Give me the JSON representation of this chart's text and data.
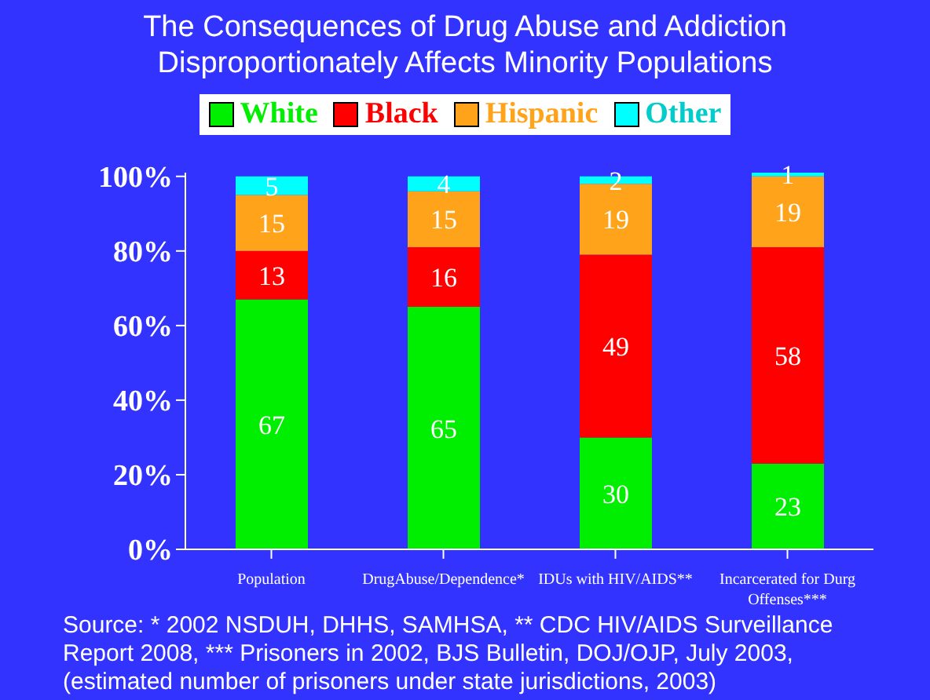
{
  "chart_data": {
    "type": "bar",
    "stacked": true,
    "title": "The Consequences of Drug Abuse and Addiction Disproportionately Affects Minority Populations",
    "categories": [
      "Population",
      "DrugAbuse/Dependence*",
      "IDUs with HIV/AIDS**",
      "Incarcerated for Durg Offenses***"
    ],
    "series": [
      {
        "name": "White",
        "color": "#00ee00",
        "values": [
          67,
          65,
          30,
          23
        ]
      },
      {
        "name": "Black",
        "color": "#ff0000",
        "values": [
          13,
          16,
          49,
          58
        ]
      },
      {
        "name": "Hispanic",
        "color": "#ffa31a",
        "values": [
          15,
          15,
          19,
          19
        ]
      },
      {
        "name": "Other",
        "color": "#00ffff",
        "values": [
          5,
          4,
          2,
          1
        ]
      }
    ],
    "ylim": [
      0,
      101
    ],
    "yticks": [
      {
        "value": 0,
        "label": "0%"
      },
      {
        "value": 20,
        "label": "20%"
      },
      {
        "value": 40,
        "label": "40%"
      },
      {
        "value": 60,
        "label": "60%"
      },
      {
        "value": 80,
        "label": "80%"
      },
      {
        "value": 100,
        "label": "100%"
      }
    ],
    "data_labels": true,
    "grid": false,
    "legend": "top",
    "annotations": [
      "Source: * 2002 NSDUH, DHHS, SAMHSA, ** CDC HIV/AIDS Surveillance Report 2008, *** Prisoners in 2002, BJS Bulletin, DOJ/OJP, July 2003, (estimated number of prisoners under state jurisdictions, 2003)"
    ]
  }
}
